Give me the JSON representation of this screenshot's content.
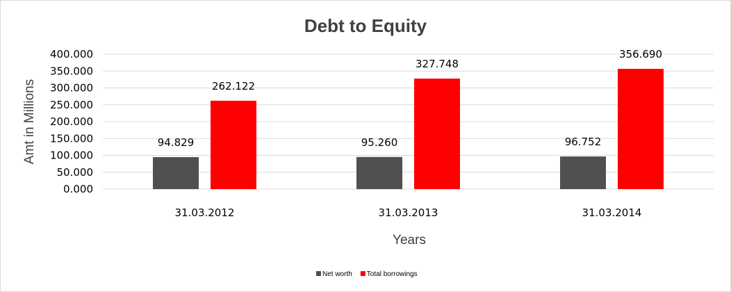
{
  "chart_data": {
    "type": "bar",
    "title": "Debt to Equity",
    "xlabel": "Years",
    "ylabel": "Amt in Millions",
    "categories": [
      "31.03.2012",
      "31.03.2013",
      "31.03.2014"
    ],
    "series": [
      {
        "name": "Net worth",
        "values": [
          94.829,
          95.26,
          96.752
        ],
        "labels": [
          "94.829",
          "95.260",
          "96.752"
        ],
        "color": "#505050"
      },
      {
        "name": "Total borrowings",
        "values": [
          262.122,
          327.748,
          356.69
        ],
        "labels": [
          "262.122",
          "327.748",
          "356.690"
        ],
        "color": "#ff0000"
      }
    ],
    "ylim": [
      0,
      400
    ],
    "yticks": [
      "0.000",
      "50.000",
      "100.000",
      "150.000",
      "200.000",
      "250.000",
      "300.000",
      "350.000",
      "400.000"
    ],
    "grid": true,
    "legend_position": "bottom"
  }
}
